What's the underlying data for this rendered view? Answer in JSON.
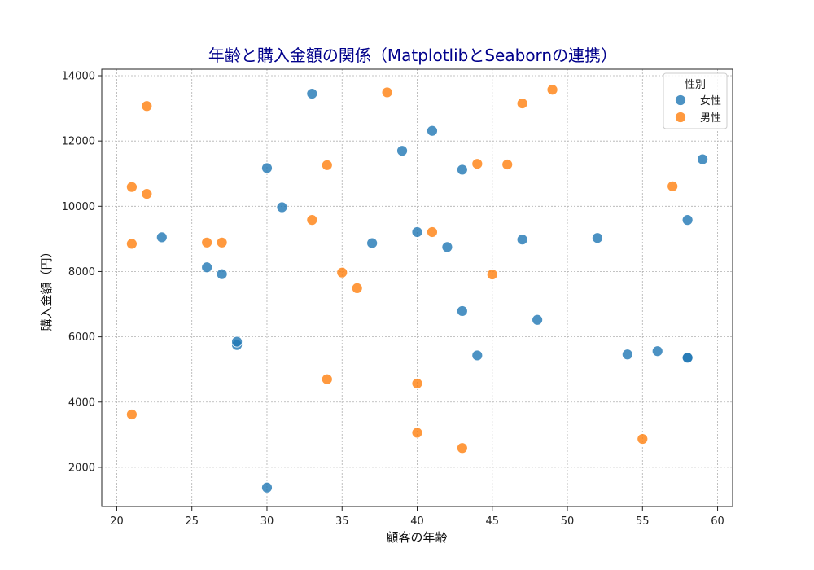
{
  "chart_data": {
    "type": "scatter",
    "title": "年齢と購入金額の関係（MatplotlibとSeabornの連携）",
    "title_color": "#00008b",
    "xlabel": "顧客の年齢",
    "ylabel": "購入金額（円）",
    "xlim": [
      19,
      61
    ],
    "ylim": [
      800,
      14200
    ],
    "xticks": [
      20,
      25,
      30,
      35,
      40,
      45,
      50,
      55,
      60
    ],
    "yticks": [
      2000,
      4000,
      6000,
      8000,
      10000,
      12000,
      14000
    ],
    "grid": true,
    "legend": {
      "title": "性別",
      "placement": "top-right"
    },
    "series": [
      {
        "name": "女性",
        "color": "#1f77b4",
        "points": [
          [
            23,
            9050
          ],
          [
            26,
            8130
          ],
          [
            27,
            7920
          ],
          [
            28,
            5750
          ],
          [
            28,
            5850
          ],
          [
            30,
            11170
          ],
          [
            30,
            1380
          ],
          [
            31,
            9970
          ],
          [
            33,
            13450
          ],
          [
            37,
            8870
          ],
          [
            39,
            11700
          ],
          [
            40,
            9210
          ],
          [
            41,
            12310
          ],
          [
            42,
            8750
          ],
          [
            43,
            11120
          ],
          [
            43,
            6790
          ],
          [
            44,
            5430
          ],
          [
            47,
            8980
          ],
          [
            48,
            6520
          ],
          [
            52,
            9030
          ],
          [
            54,
            5460
          ],
          [
            56,
            5560
          ],
          [
            58,
            5370
          ],
          [
            58,
            5360
          ],
          [
            58,
            9580
          ],
          [
            59,
            11440
          ]
        ]
      },
      {
        "name": "男性",
        "color": "#ff7f0e",
        "points": [
          [
            21,
            10590
          ],
          [
            21,
            8850
          ],
          [
            21,
            3620
          ],
          [
            22,
            13070
          ],
          [
            22,
            10380
          ],
          [
            26,
            8890
          ],
          [
            27,
            8890
          ],
          [
            33,
            9580
          ],
          [
            34,
            11260
          ],
          [
            34,
            4700
          ],
          [
            35,
            7970
          ],
          [
            36,
            7490
          ],
          [
            38,
            13490
          ],
          [
            40,
            4570
          ],
          [
            40,
            3060
          ],
          [
            41,
            9210
          ],
          [
            43,
            2590
          ],
          [
            44,
            11300
          ],
          [
            45,
            7910
          ],
          [
            46,
            11280
          ],
          [
            47,
            13150
          ],
          [
            49,
            13570
          ],
          [
            55,
            2870
          ],
          [
            57,
            10610
          ]
        ]
      }
    ]
  }
}
